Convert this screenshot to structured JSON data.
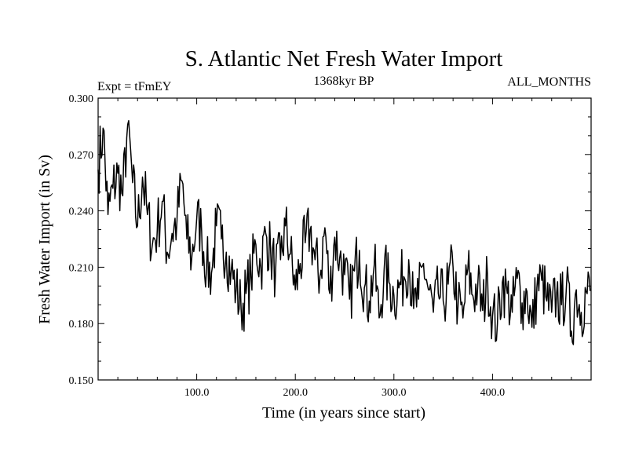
{
  "chart_data": {
    "type": "line",
    "title": "S. Atlantic Net Fresh Water Import",
    "subtitle_left": "Expt = tFmEY",
    "subtitle_center": "1368kyr BP",
    "subtitle_right": "ALL_MONTHS",
    "xlabel": "Time (in years since start)",
    "ylabel": "Fresh Water Import (in Sv)",
    "xlim": [
      0,
      500
    ],
    "ylim": [
      0.15,
      0.3
    ],
    "x_ticks": [
      100,
      200,
      300,
      400
    ],
    "x_tick_labels": [
      "100.0",
      "200.0",
      "300.0",
      "400.0"
    ],
    "y_ticks": [
      0.15,
      0.18,
      0.21,
      0.24,
      0.27,
      0.3
    ],
    "y_tick_labels": [
      "0.150",
      "0.180",
      "0.210",
      "0.240",
      "0.270",
      "0.300"
    ],
    "series": [
      {
        "name": "Net Fresh Water Import",
        "x_start": 0,
        "x_step": 5,
        "values": [
          0.262,
          0.284,
          0.238,
          0.252,
          0.26,
          0.248,
          0.286,
          0.255,
          0.232,
          0.258,
          0.238,
          0.222,
          0.23,
          0.245,
          0.218,
          0.228,
          0.235,
          0.256,
          0.225,
          0.215,
          0.236,
          0.229,
          0.21,
          0.207,
          0.232,
          0.225,
          0.218,
          0.208,
          0.198,
          0.188,
          0.196,
          0.205,
          0.222,
          0.21,
          0.228,
          0.218,
          0.208,
          0.214,
          0.232,
          0.217,
          0.198,
          0.212,
          0.223,
          0.23,
          0.214,
          0.205,
          0.231,
          0.196,
          0.226,
          0.215,
          0.206,
          0.193,
          0.208,
          0.219,
          0.199,
          0.192,
          0.211,
          0.183,
          0.208,
          0.202,
          0.195,
          0.199,
          0.205,
          0.214,
          0.188,
          0.193,
          0.212,
          0.198,
          0.186,
          0.196,
          0.192,
          0.201,
          0.21,
          0.189,
          0.183,
          0.209,
          0.195,
          0.2,
          0.187,
          0.205,
          0.184,
          0.18,
          0.202,
          0.196,
          0.186,
          0.204,
          0.191,
          0.197,
          0.178,
          0.199,
          0.203,
          0.192,
          0.186,
          0.196,
          0.19,
          0.2,
          0.176,
          0.198,
          0.186,
          0.197
        ]
      }
    ]
  }
}
